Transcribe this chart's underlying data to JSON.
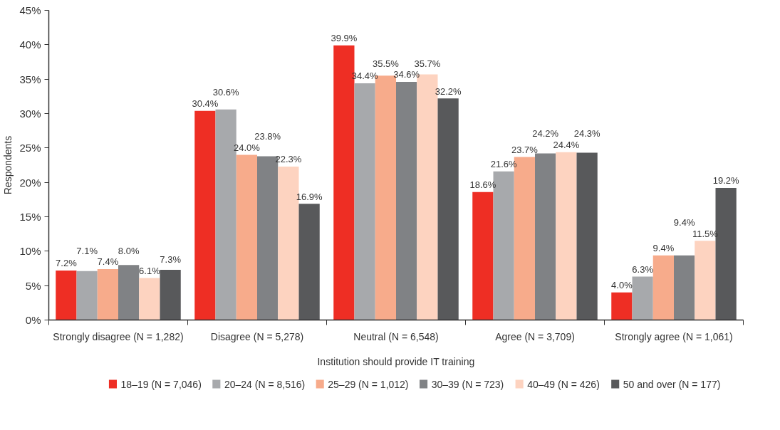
{
  "chart_data": {
    "type": "bar",
    "xlabel": "Institution should provide IT training",
    "ylabel": "Respondents",
    "categories": [
      "Strongly disagree (N = 1,282)",
      "Disagree (N = 5,278)",
      "Neutral (N = 6,548)",
      "Agree (N = 3,709)",
      "Strongly agree (N = 1,061)"
    ],
    "series": [
      {
        "name": "18–19 (N = 7,046)",
        "color": "#ee2e24",
        "values": [
          7.2,
          30.4,
          39.9,
          18.6,
          4.0
        ],
        "value_labels": [
          "7.2%",
          "30.4%",
          "39.9%",
          "18.6%",
          "4.0%"
        ]
      },
      {
        "name": "20–24 (N = 8,516)",
        "color": "#a7a9ac",
        "values": [
          7.1,
          30.6,
          34.4,
          21.6,
          6.3
        ],
        "value_labels": [
          "7.1%",
          "30.6%",
          "34.4%",
          "21.6%",
          "6.3%"
        ]
      },
      {
        "name": "25–29 (N = 1,012)",
        "color": "#f7ab8b",
        "values": [
          7.4,
          24.0,
          35.5,
          23.7,
          9.4
        ],
        "value_labels": [
          "7.4%",
          "24.0%",
          "35.5%",
          "23.7%",
          "9.4%"
        ]
      },
      {
        "name": "30–39 (N = 723)",
        "color": "#808285",
        "values": [
          8.0,
          23.8,
          34.6,
          24.2,
          9.4
        ],
        "value_labels": [
          "8.0%",
          "23.8%",
          "34.6%",
          "24.2%",
          "9.4%"
        ]
      },
      {
        "name": "40–49 (N = 426)",
        "color": "#fdd3c0",
        "values": [
          6.1,
          22.3,
          35.7,
          24.4,
          11.5
        ],
        "value_labels": [
          "6.1%",
          "22.3%",
          "35.7%",
          "24.4%",
          "11.5%"
        ]
      },
      {
        "name": "50 and over (N = 177)",
        "color": "#58595b",
        "values": [
          7.3,
          16.9,
          32.2,
          24.3,
          19.2
        ],
        "value_labels": [
          "7.3%",
          "16.9%",
          "32.2%",
          "24.3%",
          "19.2%"
        ]
      }
    ],
    "ylim": [
      0,
      45
    ],
    "yticks": [
      {
        "value": 0,
        "label": "0%"
      },
      {
        "value": 5,
        "label": "5%"
      },
      {
        "value": 10,
        "label": "10%"
      },
      {
        "value": 15,
        "label": "15%"
      },
      {
        "value": 20,
        "label": "20%"
      },
      {
        "value": 25,
        "label": "25%"
      },
      {
        "value": 30,
        "label": "30%"
      },
      {
        "value": 35,
        "label": "35%"
      },
      {
        "value": 40,
        "label": "40%"
      },
      {
        "value": 45,
        "label": "45%"
      }
    ],
    "grid": false,
    "legend": "bottom"
  }
}
